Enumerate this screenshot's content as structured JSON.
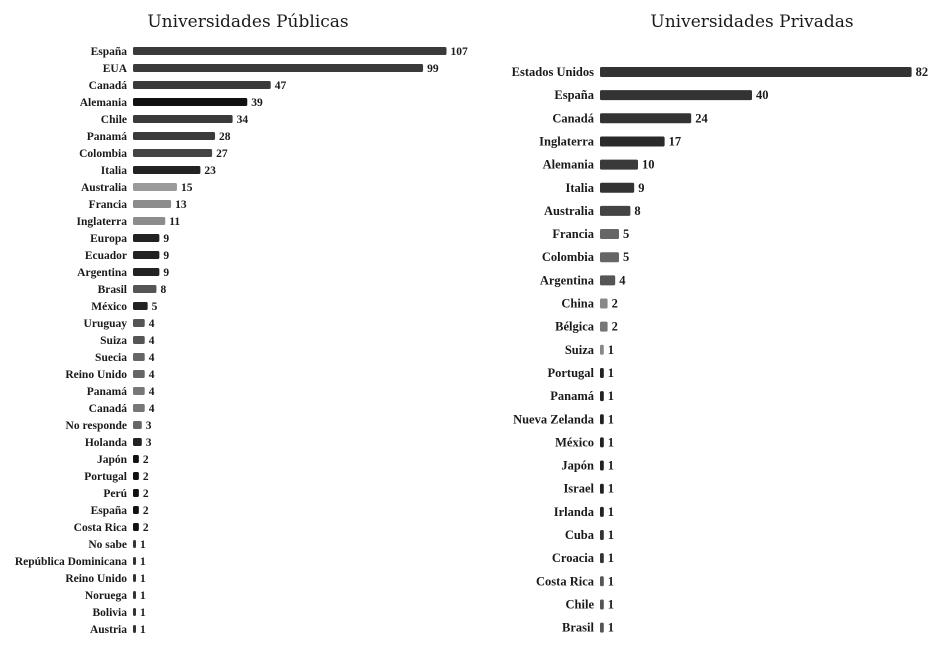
{
  "chart_data": [
    {
      "type": "bar",
      "orientation": "horizontal",
      "title": "Universidades Públicas",
      "categories": [
        "España",
        "EUA",
        "Canadá",
        "Alemania",
        "Chile",
        "Panamá",
        "Colombia",
        "Italia",
        "Australia",
        "Francia",
        "Inglaterra",
        "Europa",
        "Ecuador",
        "Argentina",
        "Brasil",
        "México",
        "Uruguay",
        "Suiza",
        "Suecia",
        "Reino Unido",
        "Panamá",
        "Canadá",
        "No responde",
        "Holanda",
        "Japón",
        "Portugal",
        "Perú",
        "España",
        "Costa Rica",
        "No sabe",
        "República Dominicana",
        "Reino Unido",
        "Noruega",
        "Bolivia",
        "Austria"
      ],
      "values": [
        107,
        99,
        47,
        39,
        34,
        28,
        27,
        23,
        15,
        13,
        11,
        9,
        9,
        9,
        8,
        5,
        4,
        4,
        4,
        4,
        4,
        4,
        3,
        3,
        2,
        2,
        2,
        2,
        2,
        1,
        1,
        1,
        1,
        1,
        1
      ],
      "colors": [
        "#3a3a3a",
        "#3a3a3a",
        "#3a3a3a",
        "#111111",
        "#3a3a3a",
        "#3a3a3a",
        "#444444",
        "#222222",
        "#9a9a9a",
        "#8c8c8c",
        "#8c8c8c",
        "#222222",
        "#222222",
        "#222222",
        "#555555",
        "#222222",
        "#555555",
        "#555555",
        "#666666",
        "#666666",
        "#777777",
        "#777777",
        "#666666",
        "#222222",
        "#111111",
        "#111111",
        "#111111",
        "#111111",
        "#111111",
        "#333333",
        "#333333",
        "#333333",
        "#333333",
        "#333333",
        "#333333"
      ],
      "data_labels": true,
      "grid": false
    },
    {
      "type": "bar",
      "orientation": "horizontal",
      "title": "Universidades Privadas",
      "categories": [
        "Estados Unidos",
        "España",
        "Canadá",
        "Inglaterra",
        "Alemania",
        "Italia",
        "Australia",
        "Francia",
        "Colombia",
        "Argentina",
        "China",
        "Bélgica",
        "Suiza",
        "Portugal",
        "Panamá",
        "Nueva Zelanda",
        "México",
        "Japón",
        "Israel",
        "Irlanda",
        "Cuba",
        "Croacia",
        "Costa Rica",
        "Chile",
        "Brasil"
      ],
      "values": [
        82,
        40,
        24,
        17,
        10,
        9,
        8,
        5,
        5,
        4,
        2,
        2,
        1,
        1,
        1,
        1,
        1,
        1,
        1,
        1,
        1,
        1,
        1,
        1,
        1
      ],
      "colors": [
        "#333333",
        "#333333",
        "#333333",
        "#2a2a2a",
        "#3a3a3a",
        "#333333",
        "#444444",
        "#666666",
        "#666666",
        "#555555",
        "#888888",
        "#777777",
        "#888888",
        "#222222",
        "#222222",
        "#222222",
        "#222222",
        "#222222",
        "#222222",
        "#222222",
        "#333333",
        "#333333",
        "#555555",
        "#555555",
        "#555555"
      ],
      "data_labels": true,
      "grid": false
    }
  ]
}
